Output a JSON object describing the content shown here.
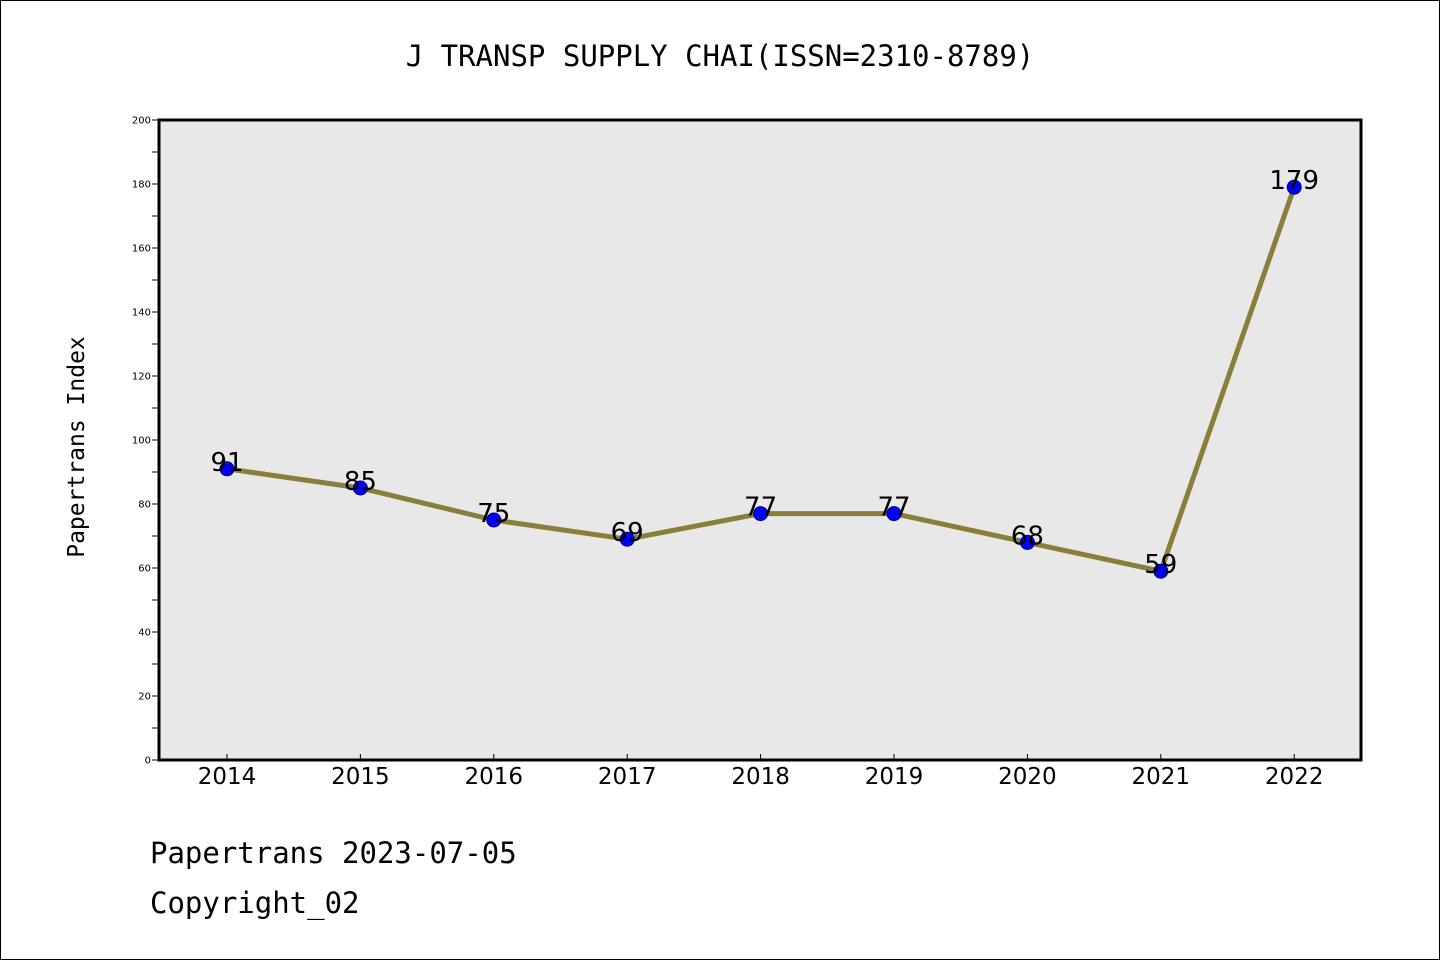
{
  "chart_data": {
    "type": "line",
    "title": "J TRANSP SUPPLY CHAI(ISSN=2310-8789)",
    "xlabel": "",
    "ylabel": "Papertrans Index",
    "categories": [
      "2014",
      "2015",
      "2016",
      "2017",
      "2018",
      "2019",
      "2020",
      "2021",
      "2022"
    ],
    "series": [
      {
        "values": [
          91,
          85,
          75,
          69,
          77,
          77,
          68,
          59,
          179
        ],
        "data_labels": [
          "91",
          "85",
          "75",
          "69",
          "77",
          "77",
          "68",
          "59",
          "179"
        ]
      }
    ],
    "ylim": [
      0,
      200
    ],
    "yticks": [
      "0",
      "20",
      "40",
      "60",
      "80",
      "100",
      "120",
      "140",
      "160",
      "180",
      "200"
    ],
    "grid": false,
    "legend": "none",
    "colors": {
      "line": "#8B7D3A",
      "marker": "#0000FF",
      "marker_edge": "#000080",
      "plot_background": "#E8E8E8"
    }
  },
  "footer": {
    "date_text": "Papertrans 2023-07-05",
    "copyright_text": "Copyright_02"
  }
}
